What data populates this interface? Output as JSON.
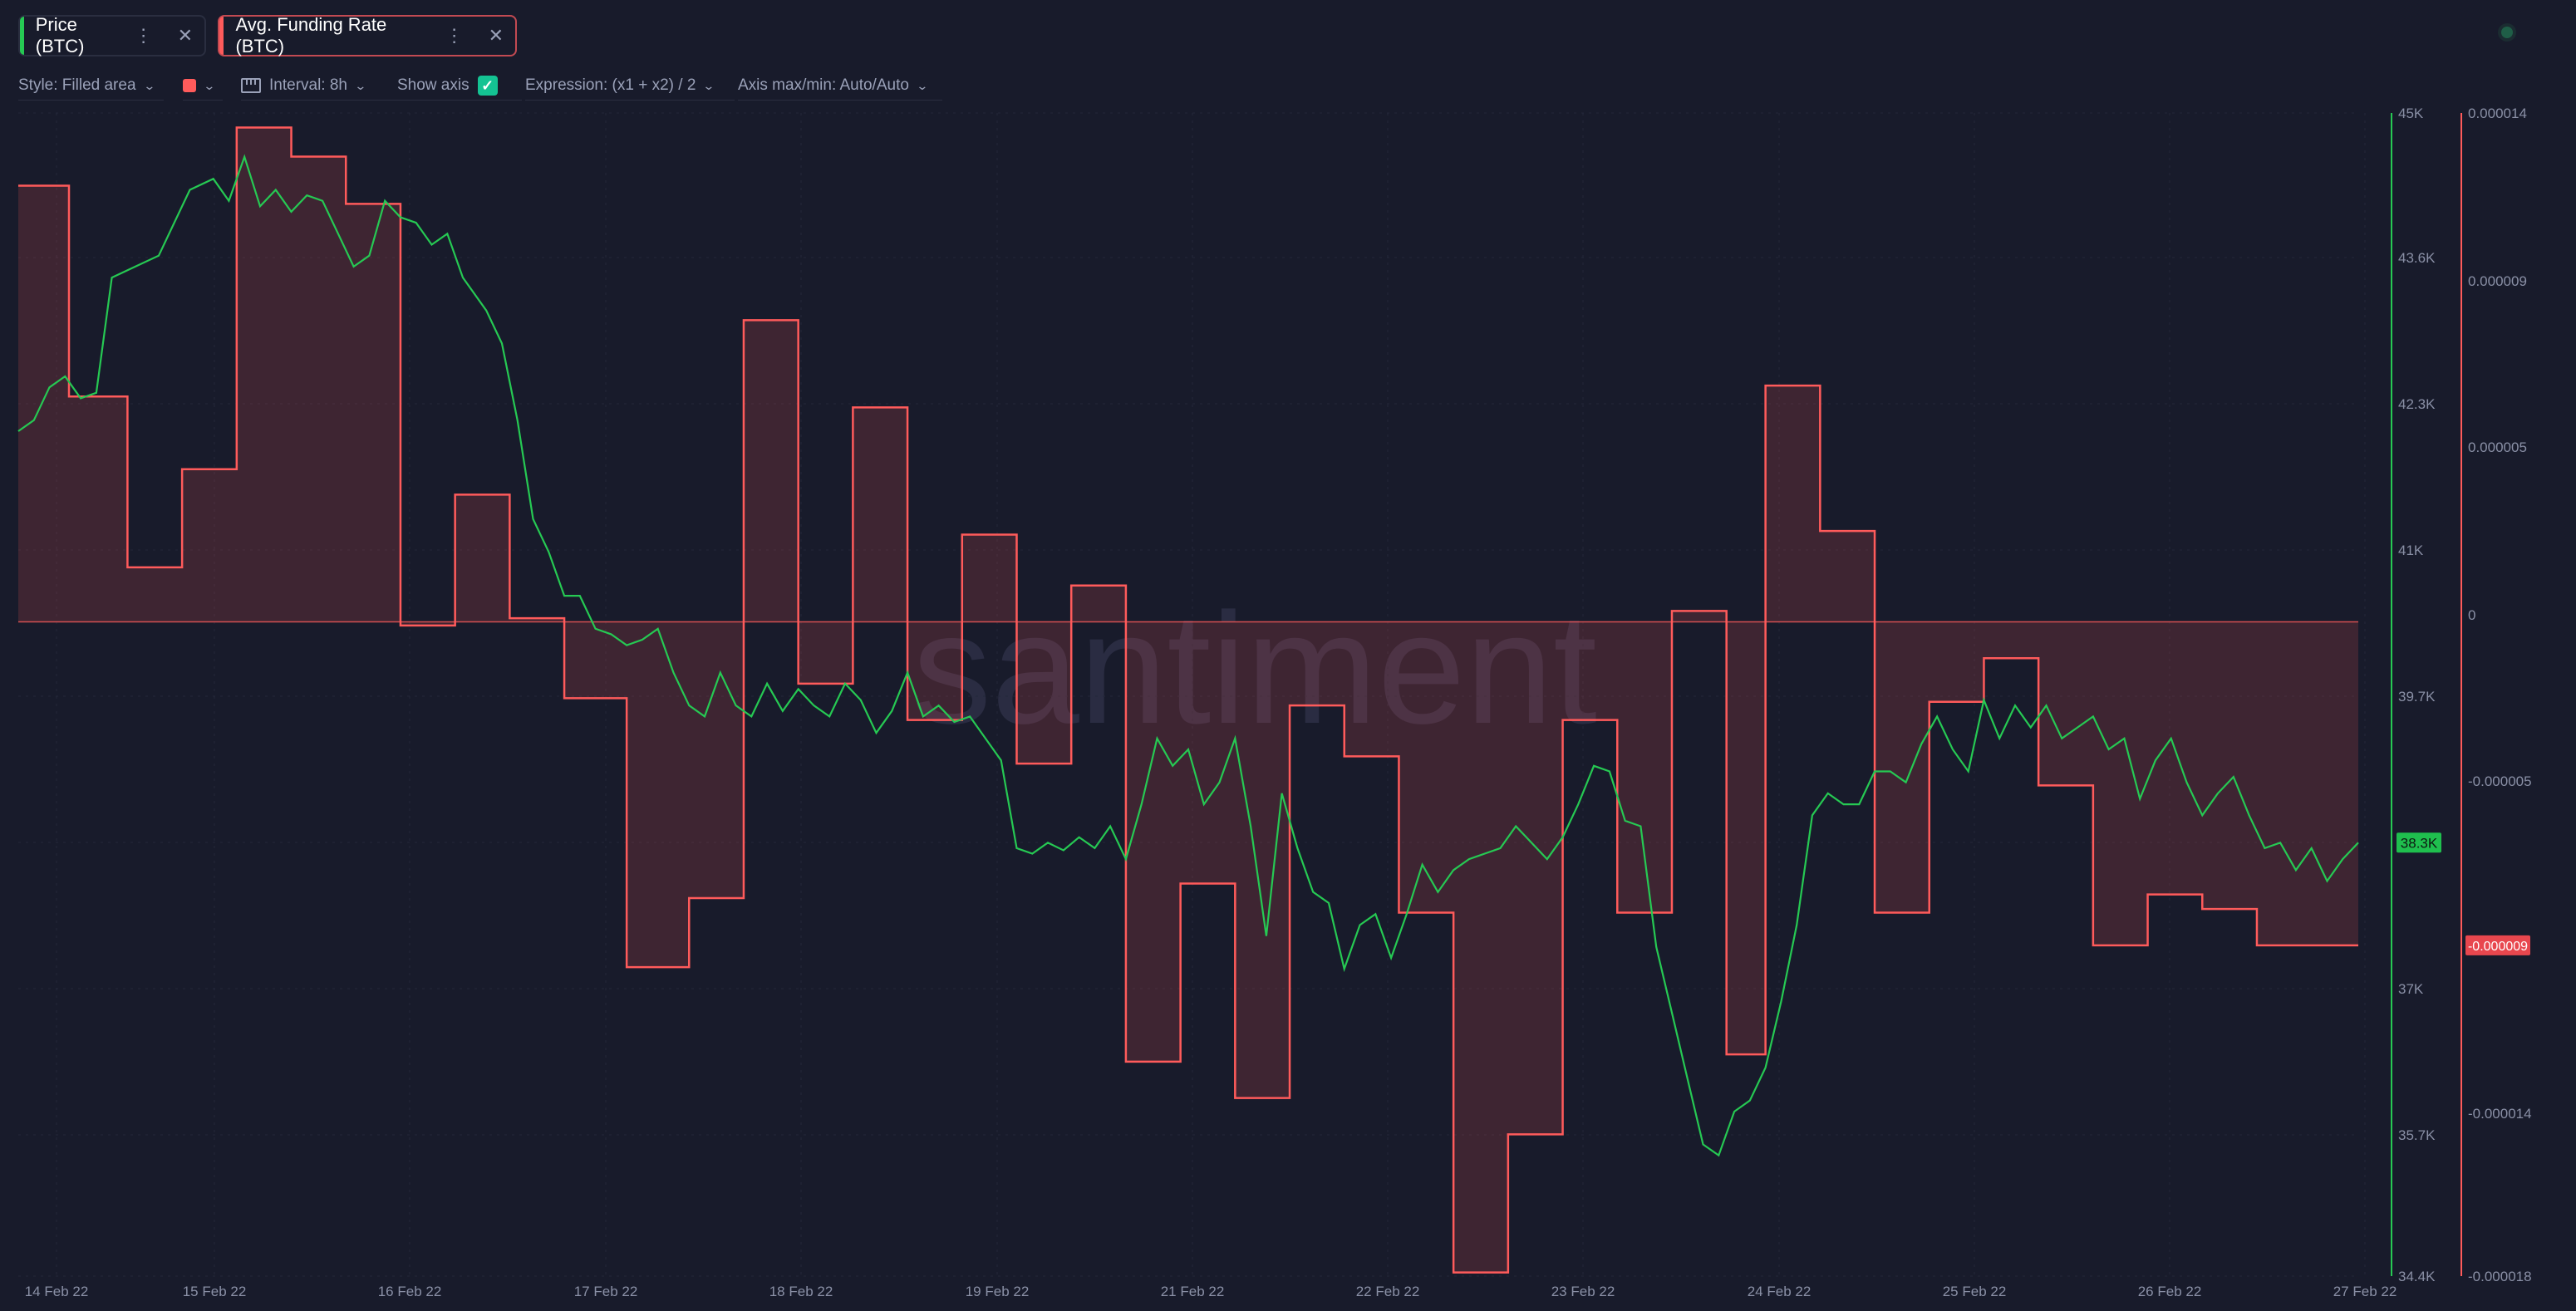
{
  "tabs": [
    {
      "label": "Price (BTC)",
      "color": "#26c953"
    },
    {
      "label": "Avg. Funding Rate (BTC)",
      "color": "#ff5b5b"
    }
  ],
  "toolbar": {
    "style": "Style: Filled area",
    "color_swatch": "#ff5b5b",
    "interval": "Interval: 8h",
    "show_axis": "Show axis",
    "show_axis_checked": true,
    "expression": "Expression: (x1 + x2) / 2",
    "axis_maxmin": "Axis max/min: Auto/Auto"
  },
  "watermark": "santiment",
  "chart_data": {
    "type": "line",
    "x_labels": [
      "14 Feb 22",
      "15 Feb 22",
      "16 Feb 22",
      "17 Feb 22",
      "18 Feb 22",
      "19 Feb 22",
      "21 Feb 22",
      "22 Feb 22",
      "23 Feb 22",
      "24 Feb 22",
      "25 Feb 22",
      "26 Feb 22",
      "27 Feb 22"
    ],
    "series": [
      {
        "name": "Price (BTC)",
        "style": "line",
        "color": "#26c953",
        "axis": "left",
        "tick_labels": [
          "45K",
          "43.6K",
          "42.3K",
          "41K",
          "39.7K",
          "37K",
          "35.7K",
          "34.4K"
        ],
        "ylim": [
          34400,
          45000
        ],
        "last_value_label": "38.3K",
        "points": [
          [
            0,
            42100
          ],
          [
            0.02,
            42200
          ],
          [
            0.04,
            42500
          ],
          [
            0.06,
            42600
          ],
          [
            0.08,
            42400
          ],
          [
            0.1,
            42450
          ],
          [
            0.12,
            43500
          ],
          [
            0.15,
            43600
          ],
          [
            0.18,
            43700
          ],
          [
            0.2,
            44000
          ],
          [
            0.22,
            44300
          ],
          [
            0.25,
            44400
          ],
          [
            0.27,
            44200
          ],
          [
            0.29,
            44600
          ],
          [
            0.31,
            44150
          ],
          [
            0.33,
            44300
          ],
          [
            0.35,
            44100
          ],
          [
            0.37,
            44250
          ],
          [
            0.39,
            44200
          ],
          [
            0.41,
            43900
          ],
          [
            0.43,
            43600
          ],
          [
            0.45,
            43700
          ],
          [
            0.47,
            44200
          ],
          [
            0.49,
            44050
          ],
          [
            0.51,
            44000
          ],
          [
            0.53,
            43800
          ],
          [
            0.55,
            43900
          ],
          [
            0.57,
            43500
          ],
          [
            0.6,
            43200
          ],
          [
            0.62,
            42900
          ],
          [
            0.64,
            42200
          ],
          [
            0.66,
            41300
          ],
          [
            0.68,
            41000
          ],
          [
            0.7,
            40600
          ],
          [
            0.72,
            40600
          ],
          [
            0.74,
            40300
          ],
          [
            0.76,
            40250
          ],
          [
            0.78,
            40150
          ],
          [
            0.8,
            40200
          ],
          [
            0.82,
            40300
          ],
          [
            0.84,
            39900
          ],
          [
            0.86,
            39600
          ],
          [
            0.88,
            39500
          ],
          [
            0.9,
            39900
          ],
          [
            0.92,
            39600
          ],
          [
            0.94,
            39500
          ],
          [
            0.96,
            39800
          ],
          [
            0.98,
            39550
          ],
          [
            1.0,
            39750
          ],
          [
            1.02,
            39600
          ],
          [
            1.04,
            39500
          ],
          [
            1.06,
            39800
          ],
          [
            1.08,
            39650
          ],
          [
            1.1,
            39350
          ],
          [
            1.12,
            39550
          ],
          [
            1.14,
            39900
          ],
          [
            1.16,
            39500
          ],
          [
            1.18,
            39600
          ],
          [
            1.2,
            39450
          ],
          [
            1.22,
            39500
          ],
          [
            1.24,
            39300
          ],
          [
            1.26,
            39100
          ],
          [
            1.28,
            38300
          ],
          [
            1.3,
            38250
          ],
          [
            1.32,
            38350
          ],
          [
            1.34,
            38280
          ],
          [
            1.36,
            38400
          ],
          [
            1.38,
            38300
          ],
          [
            1.4,
            38500
          ],
          [
            1.42,
            38200
          ],
          [
            1.44,
            38700
          ],
          [
            1.46,
            39300
          ],
          [
            1.48,
            39050
          ],
          [
            1.5,
            39200
          ],
          [
            1.52,
            38700
          ],
          [
            1.54,
            38900
          ],
          [
            1.56,
            39300
          ],
          [
            1.58,
            38500
          ],
          [
            1.6,
            37500
          ],
          [
            1.62,
            38800
          ],
          [
            1.64,
            38300
          ],
          [
            1.66,
            37900
          ],
          [
            1.68,
            37800
          ],
          [
            1.7,
            37200
          ],
          [
            1.72,
            37600
          ],
          [
            1.74,
            37700
          ],
          [
            1.76,
            37300
          ],
          [
            1.78,
            37700
          ],
          [
            1.8,
            38150
          ],
          [
            1.82,
            37900
          ],
          [
            1.84,
            38100
          ],
          [
            1.86,
            38200
          ],
          [
            1.88,
            38250
          ],
          [
            1.9,
            38300
          ],
          [
            1.92,
            38500
          ],
          [
            1.94,
            38350
          ],
          [
            1.96,
            38200
          ],
          [
            1.98,
            38400
          ],
          [
            2.0,
            38700
          ],
          [
            2.02,
            39050
          ],
          [
            2.04,
            39000
          ],
          [
            2.06,
            38550
          ],
          [
            2.08,
            38500
          ],
          [
            2.1,
            37400
          ],
          [
            2.12,
            36800
          ],
          [
            2.14,
            36200
          ],
          [
            2.16,
            35600
          ],
          [
            2.18,
            35500
          ],
          [
            2.2,
            35900
          ],
          [
            2.22,
            36000
          ],
          [
            2.24,
            36300
          ],
          [
            2.26,
            36900
          ],
          [
            2.28,
            37600
          ],
          [
            2.3,
            38600
          ],
          [
            2.32,
            38800
          ],
          [
            2.34,
            38700
          ],
          [
            2.36,
            38700
          ],
          [
            2.38,
            39000
          ],
          [
            2.4,
            39000
          ],
          [
            2.42,
            38900
          ],
          [
            2.44,
            39250
          ],
          [
            2.46,
            39500
          ],
          [
            2.48,
            39200
          ],
          [
            2.5,
            39000
          ],
          [
            2.52,
            39650
          ],
          [
            2.54,
            39300
          ],
          [
            2.56,
            39600
          ],
          [
            2.58,
            39400
          ],
          [
            2.6,
            39600
          ],
          [
            2.62,
            39300
          ],
          [
            2.64,
            39400
          ],
          [
            2.66,
            39500
          ],
          [
            2.68,
            39200
          ],
          [
            2.7,
            39300
          ],
          [
            2.72,
            38750
          ],
          [
            2.74,
            39100
          ],
          [
            2.76,
            39300
          ],
          [
            2.78,
            38900
          ],
          [
            2.8,
            38600
          ],
          [
            2.82,
            38800
          ],
          [
            2.84,
            38950
          ],
          [
            2.86,
            38600
          ],
          [
            2.88,
            38300
          ],
          [
            2.9,
            38350
          ],
          [
            2.92,
            38100
          ],
          [
            2.94,
            38300
          ],
          [
            2.96,
            38000
          ],
          [
            2.98,
            38200
          ],
          [
            3.0,
            38350
          ]
        ]
      },
      {
        "name": "Avg. Funding Rate (BTC)",
        "style": "filled area",
        "color": "#ff5b5b",
        "axis": "right",
        "tick_labels": [
          "0.000014",
          "0.000009",
          "0.000005",
          "0",
          "-0.000005",
          "-0.000014",
          "-0.000018"
        ],
        "ylim": [
          -1.8e-05,
          1.4e-05
        ],
        "last_value_label": "-0.000009",
        "steps": [
          [
            0,
            1.2e-05
          ],
          [
            0.065,
            6.2e-06
          ],
          [
            0.14,
            1.5e-06
          ],
          [
            0.21,
            4.2e-06
          ],
          [
            0.28,
            1.36e-05
          ],
          [
            0.35,
            1.28e-05
          ],
          [
            0.42,
            1.15e-05
          ],
          [
            0.49,
            -1e-07
          ],
          [
            0.56,
            3.5e-06
          ],
          [
            0.63,
            1e-07
          ],
          [
            0.7,
            -2.1e-06
          ],
          [
            0.78,
            -9.5e-06
          ],
          [
            0.86,
            -7.6e-06
          ],
          [
            0.93,
            8.3e-06
          ],
          [
            1.0,
            -1.7e-06
          ],
          [
            1.07,
            5.9e-06
          ],
          [
            1.14,
            -2.7e-06
          ],
          [
            1.21,
            2.4e-06
          ],
          [
            1.28,
            -3.9e-06
          ],
          [
            1.35,
            1e-06
          ],
          [
            1.42,
            -1.21e-05
          ],
          [
            1.49,
            -7.2e-06
          ],
          [
            1.56,
            -1.31e-05
          ],
          [
            1.63,
            -2.3e-06
          ],
          [
            1.7,
            -3.7e-06
          ],
          [
            1.77,
            -8e-06
          ],
          [
            1.84,
            -1.79e-05
          ],
          [
            1.91,
            -1.41e-05
          ],
          [
            1.98,
            -2.7e-06
          ],
          [
            2.05,
            -8e-06
          ],
          [
            2.12,
            3e-07
          ],
          [
            2.19,
            -1.19e-05
          ],
          [
            2.24,
            6.5e-06
          ],
          [
            2.31,
            2.5e-06
          ],
          [
            2.38,
            -8e-06
          ],
          [
            2.45,
            -2.2e-06
          ],
          [
            2.52,
            -1e-06
          ],
          [
            2.59,
            -4.5e-06
          ],
          [
            2.66,
            -8.9e-06
          ],
          [
            2.73,
            -7.5e-06
          ],
          [
            2.8,
            -7.9e-06
          ],
          [
            2.87,
            -8.9e-06
          ],
          [
            3.0,
            -8.9e-06
          ]
        ]
      }
    ]
  }
}
